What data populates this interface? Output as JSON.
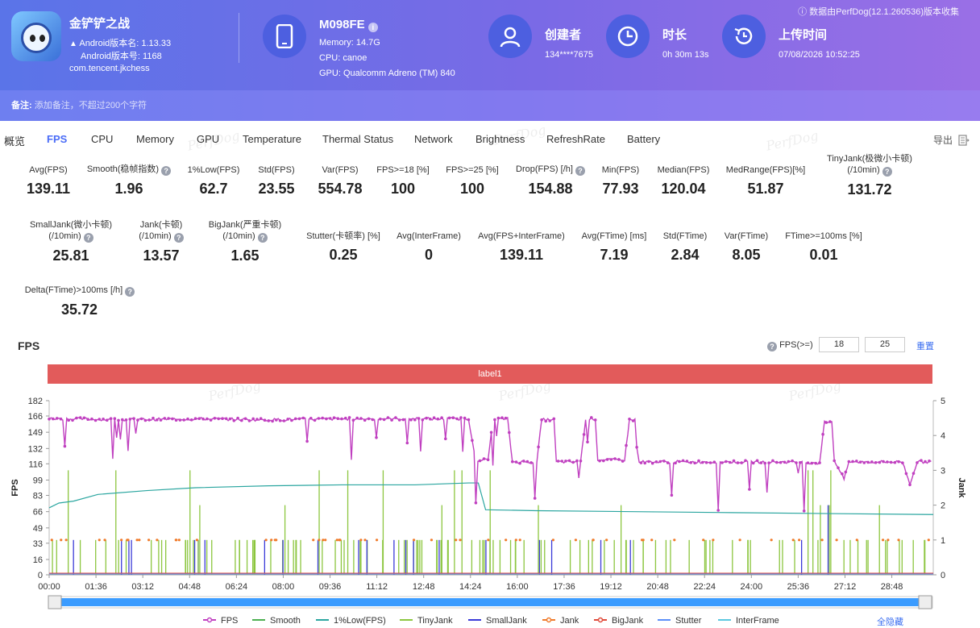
{
  "header": {
    "notice": "数据由PerfDog(12.1.260536)版本收集",
    "app": {
      "name": "金铲铲之战",
      "version_name": "Android版本名: 1.13.33",
      "version_code": "Android版本号: 1168",
      "package": "com.tencent.jkchess"
    },
    "device": {
      "model": "M098FE",
      "memory": "Memory: 14.7G",
      "cpu": "CPU: canoe",
      "gpu": "GPU: Qualcomm Adreno (TM) 840"
    },
    "creator": {
      "label": "创建者",
      "value": "134****7675"
    },
    "duration": {
      "label": "时长",
      "value": "0h 30m 13s"
    },
    "upload": {
      "label": "上传时间",
      "value": "07/08/2026 10:52:25"
    }
  },
  "note": {
    "label": "备注:",
    "placeholder": "添加备注，不超过200个字符"
  },
  "tabs": [
    "概览",
    "FPS",
    "CPU",
    "Memory",
    "GPU",
    "Temperature",
    "Thermal Status",
    "Network",
    "Brightness",
    "RefreshRate",
    "Battery"
  ],
  "active_tab": "FPS",
  "export_label": "导出",
  "watermark": "PerfDog",
  "metrics_row1": [
    {
      "label": "Avg(FPS)",
      "value": "139.11",
      "help": false
    },
    {
      "label": "Smooth(稳帧指数)",
      "value": "1.96",
      "help": true
    },
    {
      "label": "1%Low(FPS)",
      "value": "62.7",
      "help": false
    },
    {
      "label": "Std(FPS)",
      "value": "23.55",
      "help": false
    },
    {
      "label": "Var(FPS)",
      "value": "554.78",
      "help": false
    },
    {
      "label": "FPS>=18 [%]",
      "value": "100",
      "help": false
    },
    {
      "label": "FPS>=25 [%]",
      "value": "100",
      "help": false
    },
    {
      "label": "Drop(FPS) [/h]",
      "value": "154.88",
      "help": true
    },
    {
      "label": "Min(FPS)",
      "value": "77.93",
      "help": false
    },
    {
      "label": "Median(FPS)",
      "value": "120.04",
      "help": false
    },
    {
      "label": "MedRange(FPS)[%]",
      "value": "51.87",
      "help": false
    },
    {
      "label": "TinyJank(极微小卡顿)",
      "label2": "(/10min)",
      "value": "131.72",
      "help": true
    }
  ],
  "metrics_row2": [
    {
      "label": "SmallJank(微小卡顿)",
      "label2": "(/10min)",
      "value": "25.81",
      "help": true
    },
    {
      "label": "Jank(卡顿)",
      "label2": "(/10min)",
      "value": "13.57",
      "help": true
    },
    {
      "label": "BigJank(严重卡顿)",
      "label2": "(/10min)",
      "value": "1.65",
      "help": true
    },
    {
      "label": "Stutter(卡顿率) [%]",
      "value": "0.25",
      "help": false
    },
    {
      "label": "Avg(InterFrame)",
      "value": "0",
      "help": false
    },
    {
      "label": "Avg(FPS+InterFrame)",
      "value": "139.11",
      "help": false
    },
    {
      "label": "Avg(FTime) [ms]",
      "value": "7.19",
      "help": false
    },
    {
      "label": "Std(FTime)",
      "value": "2.84",
      "help": false
    },
    {
      "label": "Var(FTime)",
      "value": "8.05",
      "help": false
    },
    {
      "label": "FTime>=100ms [%]",
      "value": "0.01",
      "help": false
    }
  ],
  "metrics_row3": [
    {
      "label": "Delta(FTime)>100ms [/h]",
      "value": "35.72",
      "help": true
    }
  ],
  "chart_section": {
    "title": "FPS",
    "fps_filter_label": "FPS(>=)",
    "fps_threshold_1": "18",
    "fps_threshold_2": "25",
    "reset_label": "重置",
    "band_label": "label1",
    "hide_all_label": "全隐藏"
  },
  "chart_data": {
    "type": "line",
    "ylabel": "FPS",
    "y2label": "Jank",
    "yticks": [
      0,
      16,
      33,
      49,
      66,
      83,
      99,
      116,
      132,
      149,
      166,
      182
    ],
    "ylim": [
      0,
      182
    ],
    "y2ticks": [
      0,
      1,
      2,
      3,
      4,
      5
    ],
    "y2lim": [
      0,
      5
    ],
    "xticks": [
      "00:00",
      "01:36",
      "03:12",
      "04:48",
      "06:24",
      "08:00",
      "09:36",
      "11:12",
      "12:48",
      "14:24",
      "16:00",
      "17:36",
      "19:12",
      "20:48",
      "22:24",
      "24:00",
      "25:36",
      "27:12",
      "28:48"
    ],
    "xlim_seconds": [
      0,
      1813
    ],
    "series": [
      {
        "name": "FPS",
        "color": "#c040c0",
        "points": [
          [
            0,
            163
          ],
          [
            60,
            163
          ],
          [
            150,
            162
          ],
          [
            300,
            163
          ],
          [
            450,
            162
          ],
          [
            600,
            163
          ],
          [
            750,
            163
          ],
          [
            860,
            163
          ],
          [
            875,
            120
          ],
          [
            900,
            120
          ],
          [
            910,
            163
          ],
          [
            940,
            163
          ],
          [
            950,
            118
          ],
          [
            1000,
            118
          ],
          [
            1010,
            162
          ],
          [
            1035,
            162
          ],
          [
            1040,
            118
          ],
          [
            1090,
            118
          ],
          [
            1100,
            163
          ],
          [
            1120,
            163
          ],
          [
            1125,
            120
          ],
          [
            1180,
            120
          ],
          [
            1190,
            162
          ],
          [
            1205,
            162
          ],
          [
            1210,
            118
          ],
          [
            1300,
            118
          ],
          [
            1400,
            118
          ],
          [
            1500,
            118
          ],
          [
            1580,
            117
          ],
          [
            1590,
            160
          ],
          [
            1605,
            160
          ],
          [
            1610,
            120
          ],
          [
            1630,
            100
          ],
          [
            1640,
            118
          ],
          [
            1750,
            118
          ],
          [
            1765,
            95
          ],
          [
            1780,
            118
          ],
          [
            1813,
            118
          ]
        ]
      },
      {
        "name": "1%Low(FPS)",
        "color": "#2ba6a0",
        "points": [
          [
            0,
            70
          ],
          [
            20,
            75
          ],
          [
            50,
            77
          ],
          [
            100,
            84
          ],
          [
            200,
            88
          ],
          [
            300,
            91
          ],
          [
            450,
            93
          ],
          [
            600,
            94
          ],
          [
            750,
            94
          ],
          [
            860,
            96
          ],
          [
            880,
            96
          ],
          [
            895,
            68
          ],
          [
            1000,
            67
          ],
          [
            1200,
            66
          ],
          [
            1400,
            65
          ],
          [
            1600,
            64
          ],
          [
            1813,
            63
          ]
        ]
      },
      {
        "name": "TinyJank",
        "color": "#8cc63f"
      },
      {
        "name": "SmallJank",
        "color": "#3a3ad8"
      },
      {
        "name": "Jank",
        "color": "#f07a2a"
      },
      {
        "name": "BigJank",
        "color": "#e04a3a"
      },
      {
        "name": "Smooth",
        "color": "#4caf50"
      },
      {
        "name": "Stutter",
        "color": "#5b8ff9"
      },
      {
        "name": "InterFrame",
        "color": "#5bc8e0"
      }
    ]
  }
}
